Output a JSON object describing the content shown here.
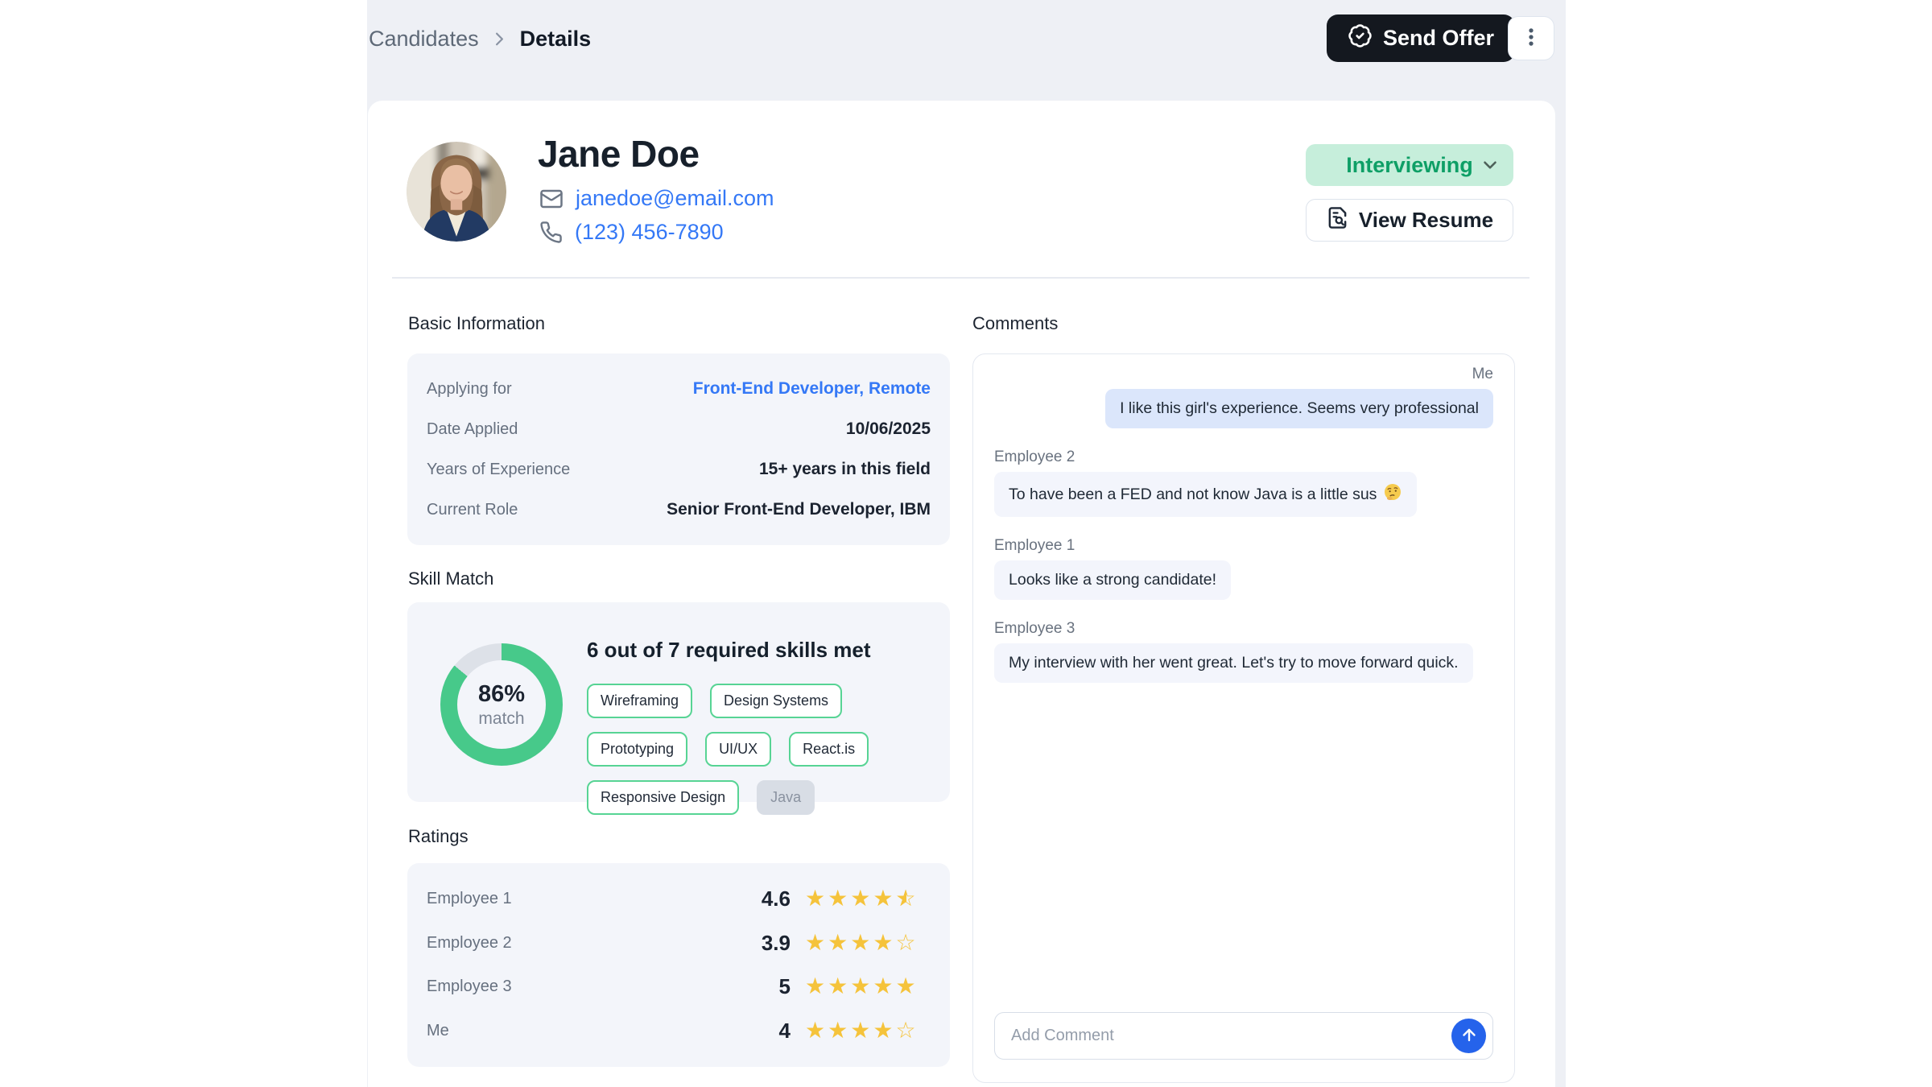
{
  "breadcrumb": {
    "parent": "Candidates",
    "current": "Details"
  },
  "topbar": {
    "send_offer_label": "Send Offer"
  },
  "profile": {
    "name": "Jane Doe",
    "email": "janedoe@email.com",
    "phone": "(123) 456-7890",
    "status_label": "Interviewing",
    "view_resume_label": "View Resume"
  },
  "basic_information": {
    "title": "Basic Information",
    "rows": [
      {
        "label": "Applying for",
        "value": "Front-End Developer, Remote"
      },
      {
        "label": "Date Applied",
        "value": "10/06/2025"
      },
      {
        "label": "Years of Experience",
        "value": "15+ years in this field"
      },
      {
        "label": "Current Role",
        "value": "Senior Front-End Developer, IBM"
      }
    ]
  },
  "skill_match": {
    "title": "Skill Match",
    "summary": "6 out of 7 required skills met",
    "percent_label": "86%",
    "percent_value": 86,
    "match_word": "match",
    "skills_met": 6,
    "skills_required": 7,
    "matched_skills": [
      "Wireframing",
      "Design Systems",
      "Prototyping",
      "UI/UX",
      "React.is",
      "Responsive Design"
    ],
    "unmatched_skills": [
      "Java"
    ]
  },
  "ratings": {
    "title": "Ratings",
    "rows": [
      {
        "label": "Employee 1",
        "value": "4.6",
        "stars": {
          "full": 4,
          "half": 1,
          "empty": 0
        }
      },
      {
        "label": "Employee 2",
        "value": "3.9",
        "stars": {
          "full": 4,
          "half": 0,
          "empty": 1
        }
      },
      {
        "label": "Employee 3",
        "value": "5",
        "stars": {
          "full": 5,
          "half": 0,
          "empty": 0
        }
      },
      {
        "label": "Me",
        "value": "4",
        "stars": {
          "full": 4,
          "half": 0,
          "empty": 1
        }
      }
    ]
  },
  "comments": {
    "title": "Comments",
    "messages": [
      {
        "author": "Me",
        "align": "right",
        "text": "I like this girl's experience. Seems very professional"
      },
      {
        "author": "Employee 2",
        "align": "left",
        "text": "To have been a FED and not know Java is a little sus",
        "emoji": "🤔"
      },
      {
        "author": "Employee 1",
        "align": "left",
        "text": "Looks like a strong candidate!"
      },
      {
        "author": "Employee 3",
        "align": "left",
        "text": "My interview with her went great. Let's try to move forward quick."
      }
    ],
    "input_placeholder": "Add Comment"
  },
  "colors": {
    "accent_green": "#47c98a",
    "donut_track": "#dde1e8",
    "status_bg": "#c6eedb",
    "status_text": "#0e9f66",
    "link_blue": "#3478f6",
    "star_gold": "#f5c33b",
    "send_button_blue": "#2563eb",
    "offer_button_dark": "#14181f",
    "me_bubble": "#dbe6fb",
    "neutral_bubble": "#f3f5fc"
  }
}
